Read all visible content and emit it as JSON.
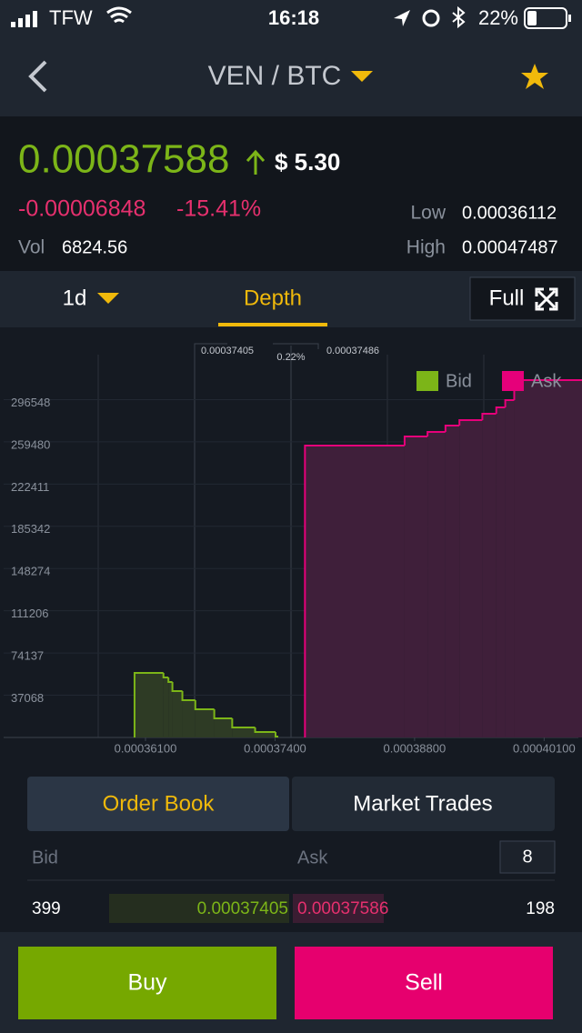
{
  "status_bar": {
    "carrier": "TFW",
    "time": "16:18",
    "battery": "22%"
  },
  "header": {
    "pair": "VEN / BTC"
  },
  "ticker": {
    "price": "0.00037588",
    "usd": "$ 5.30",
    "change": "-0.00006848",
    "change_pct": "-15.41%",
    "low_label": "Low",
    "low": "0.00036112",
    "vol_label": "Vol",
    "vol": "6824.56",
    "high_label": "High",
    "high": "0.00047487"
  },
  "tabs": {
    "interval": "1d",
    "depth": "Depth",
    "full": "Full"
  },
  "chart_data": {
    "type": "depth",
    "bid_price": "0.00037405",
    "spread": "0.22%",
    "ask_price": "0.00037486",
    "xlim": [
      0.0003464,
      0.0004048
    ],
    "ylim": [
      0,
      360000
    ],
    "xticks": [
      {
        "value": 0.000361,
        "label": "0.00036100"
      },
      {
        "value": 0.000374,
        "label": "0.00037400"
      },
      {
        "value": 0.000388,
        "label": "0.00038800"
      },
      {
        "value": 0.000401,
        "label": "0.00040100"
      }
    ],
    "yticks": [
      37068,
      74137,
      111206,
      148274,
      185342,
      222411,
      259480,
      296548
    ],
    "legend": "top-right",
    "series": [
      {
        "name": "Bid",
        "color": "#7cb518",
        "x": [
          0.0003599,
          0.0003628,
          0.0003633,
          0.0003637,
          0.0003647,
          0.000366,
          0.0003679,
          0.0003697,
          0.000372,
          0.00037405
        ],
        "values": [
          56700,
          52700,
          48700,
          40700,
          32700,
          24700,
          16800,
          8800,
          4800,
          800
        ]
      },
      {
        "name": "Ask",
        "color": "#e6007a",
        "x": [
          0.000377,
          0.000387,
          0.0003893,
          0.0003911,
          0.0003925,
          0.0003948,
          0.0003962,
          0.0003971,
          0.000398
        ],
        "values": [
          256200,
          264200,
          268200,
          273800,
          278600,
          284200,
          289800,
          296100,
          313700
        ]
      }
    ]
  },
  "order_book": {
    "tabs": [
      "Order Book",
      "Market Trades"
    ],
    "bid_label": "Bid",
    "ask_label": "Ask",
    "depth": "8",
    "rows": [
      [
        "399",
        "0.00037405",
        "0.00037586",
        "198"
      ]
    ]
  },
  "actions": {
    "buy": "Buy",
    "sell": "Sell"
  }
}
